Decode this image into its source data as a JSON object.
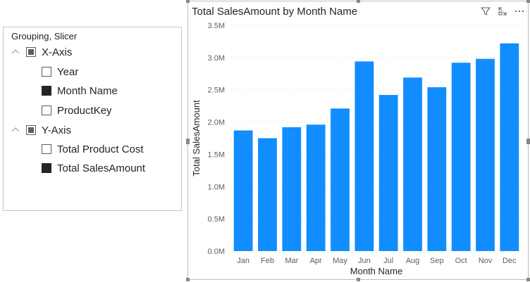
{
  "slicer": {
    "title": "Grouping, Slicer",
    "groups": [
      {
        "label": "X-Axis",
        "state": "partial",
        "items": [
          {
            "label": "Year",
            "checked": false
          },
          {
            "label": "Month Name",
            "checked": true
          },
          {
            "label": "ProductKey",
            "checked": false
          }
        ]
      },
      {
        "label": "Y-Axis",
        "state": "partial",
        "items": [
          {
            "label": "Total Product Cost",
            "checked": false
          },
          {
            "label": "Total SalesAmount",
            "checked": true
          }
        ]
      }
    ]
  },
  "visual": {
    "header_icons": [
      "filter-icon",
      "focus-mode-icon",
      "more-options-icon"
    ]
  },
  "chart_data": {
    "type": "bar",
    "title": "Total SalesAmount by Month Name",
    "xlabel": "Month Name",
    "ylabel": "Total SalesAmount",
    "categories": [
      "Jan",
      "Feb",
      "Mar",
      "Apr",
      "May",
      "Jun",
      "Jul",
      "Aug",
      "Sep",
      "Oct",
      "Nov",
      "Dec"
    ],
    "values": [
      1.87,
      1.75,
      1.92,
      1.96,
      2.21,
      2.94,
      2.42,
      2.69,
      2.54,
      2.92,
      2.98,
      3.22
    ],
    "value_unit": "M",
    "ylim": [
      0,
      3.5
    ],
    "yticks": [
      "0.0M",
      "0.5M",
      "1.0M",
      "1.5M",
      "2.0M",
      "2.5M",
      "3.0M",
      "3.5M"
    ],
    "gridlines": true,
    "bar_color": "#118DFF"
  }
}
